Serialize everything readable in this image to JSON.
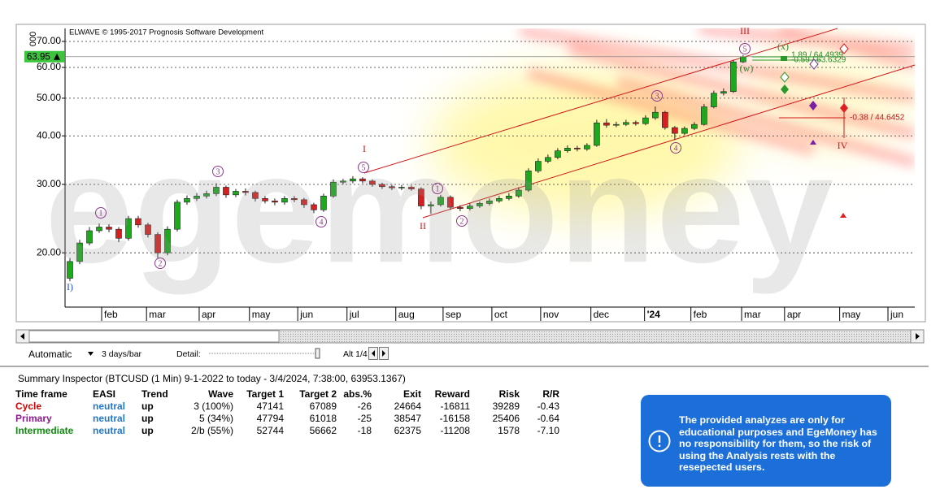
{
  "chart_data": {
    "type": "candlestick",
    "title": "ELWAVE © 1995-2017 Prognosis Software Development",
    "watermark": "egemoney",
    "clipped_tick_label": "000",
    "last_price": 63.95,
    "colors": {
      "up": "#1ea81e",
      "down": "#d42020"
    },
    "x": [
      1,
      3,
      5,
      7,
      9,
      11,
      13,
      15,
      17,
      19,
      21,
      23,
      25,
      27,
      29,
      31,
      33,
      35,
      37,
      39,
      41,
      43,
      45,
      47,
      49,
      51,
      53,
      55,
      57,
      59,
      61,
      63,
      65,
      67,
      69,
      71,
      73,
      75,
      77,
      79,
      81,
      83,
      85,
      87,
      89,
      91,
      93,
      95,
      97,
      99,
      101,
      103,
      105,
      107,
      109,
      111,
      113,
      115,
      117,
      119,
      121,
      123,
      125,
      127,
      129,
      131,
      133,
      135,
      137,
      139
    ],
    "open": [
      17.2,
      19.0,
      21.2,
      22.8,
      23.3,
      23.0,
      21.8,
      24.5,
      23.6,
      22.3,
      20.0,
      23.0,
      27.0,
      27.6,
      28.0,
      28.4,
      29.5,
      28.2,
      28.8,
      28.6,
      27.6,
      27.2,
      27.0,
      27.6,
      27.4,
      26.6,
      25.8,
      28.0,
      30.4,
      30.6,
      31.0,
      30.6,
      30.0,
      29.6,
      29.4,
      29.5,
      29.2,
      26.4,
      26.6,
      27.8,
      26.2,
      26.0,
      26.4,
      26.8,
      27.2,
      27.6,
      28.0,
      29.0,
      32.5,
      34.4,
      35.2,
      36.6,
      37.2,
      37.0,
      37.8,
      43.2,
      42.6,
      42.8,
      43.3,
      43.0,
      44.5,
      46.0,
      42.0,
      40.6,
      41.8,
      42.8,
      47.5,
      51.5,
      52.0,
      62.0
    ],
    "high": [
      19.4,
      21.6,
      23.3,
      23.8,
      23.7,
      23.3,
      24.9,
      24.9,
      23.9,
      22.6,
      23.4,
      27.4,
      28.1,
      28.5,
      28.9,
      30.2,
      29.8,
      29.2,
      29.3,
      28.9,
      28.0,
      27.6,
      28.0,
      28.0,
      27.7,
      26.9,
      28.4,
      30.9,
      31.0,
      31.5,
      31.3,
      30.9,
      30.3,
      29.9,
      29.9,
      29.8,
      29.5,
      27.1,
      28.2,
      28.1,
      26.5,
      26.8,
      27.1,
      27.6,
      28.0,
      28.5,
      29.5,
      33.0,
      35.0,
      35.8,
      37.2,
      37.8,
      37.7,
      38.3,
      44.0,
      44.2,
      43.5,
      44.0,
      43.8,
      45.2,
      47.6,
      46.4,
      42.4,
      42.3,
      43.4,
      48.3,
      52.3,
      53.0,
      62.8,
      64.5
    ],
    "low": [
      16.9,
      18.7,
      20.9,
      22.5,
      22.6,
      21.3,
      21.5,
      23.2,
      21.9,
      19.4,
      19.7,
      22.7,
      26.6,
      27.2,
      27.6,
      28.0,
      27.7,
      27.8,
      28.1,
      27.1,
      26.8,
      26.5,
      26.6,
      27.0,
      26.1,
      25.3,
      25.5,
      27.7,
      30.0,
      30.2,
      30.2,
      29.6,
      29.2,
      29.0,
      29.0,
      28.9,
      25.9,
      25.2,
      26.3,
      25.8,
      25.6,
      25.7,
      26.1,
      26.5,
      26.9,
      27.3,
      27.7,
      28.7,
      32.1,
      34.0,
      34.8,
      36.2,
      36.5,
      36.6,
      37.5,
      42.0,
      42.1,
      42.4,
      42.5,
      42.6,
      44.0,
      41.5,
      39.0,
      40.2,
      41.4,
      42.5,
      47.1,
      50.8,
      51.6,
      61.6
    ],
    "close": [
      19.0,
      21.2,
      22.8,
      23.3,
      23.0,
      21.8,
      24.5,
      23.6,
      22.3,
      20.0,
      23.0,
      27.0,
      27.6,
      28.0,
      28.4,
      29.5,
      28.2,
      28.8,
      28.6,
      27.6,
      27.2,
      27.0,
      27.6,
      27.4,
      26.6,
      25.8,
      28.0,
      30.4,
      30.6,
      31.0,
      30.6,
      30.0,
      29.6,
      29.4,
      29.5,
      29.2,
      26.4,
      26.6,
      27.8,
      26.2,
      26.0,
      26.4,
      26.8,
      27.2,
      27.6,
      28.0,
      29.0,
      32.5,
      34.4,
      35.2,
      36.6,
      37.2,
      37.0,
      37.8,
      43.2,
      42.6,
      42.8,
      43.3,
      43.0,
      44.5,
      46.0,
      42.0,
      40.6,
      41.8,
      42.8,
      47.5,
      51.5,
      52.0,
      62.0,
      63.95
    ],
    "xlim": [
      0,
      174.2
    ],
    "xticks": [
      {
        "value": 7.5,
        "label": "feb"
      },
      {
        "value": 16.7,
        "label": "mar"
      },
      {
        "value": 27.5,
        "label": "apr"
      },
      {
        "value": 37.8,
        "label": "may"
      },
      {
        "value": 47.7,
        "label": "jun"
      },
      {
        "value": 57.8,
        "label": "jul"
      },
      {
        "value": 67.8,
        "label": "aug"
      },
      {
        "value": 77.5,
        "label": "sep"
      },
      {
        "value": 87.5,
        "label": "oct"
      },
      {
        "value": 97.5,
        "label": "nov"
      },
      {
        "value": 107.8,
        "label": "dec"
      },
      {
        "value": 118.8,
        "label": "'24"
      },
      {
        "value": 128.3,
        "label": "feb"
      },
      {
        "value": 138.7,
        "label": "mar"
      },
      {
        "value": 147.5,
        "label": "apr"
      },
      {
        "value": 158.8,
        "label": "may"
      },
      {
        "value": 168.7,
        "label": "jun"
      }
    ],
    "ylim": [
      14.5,
      75.6
    ],
    "yticks": [
      {
        "value": 20,
        "label": "20.00"
      },
      {
        "value": 30,
        "label": "30.00"
      },
      {
        "value": 40,
        "label": "40.00"
      },
      {
        "value": 50,
        "label": "50.00"
      },
      {
        "value": 60,
        "label": "60.00"
      },
      {
        "value": 70,
        "label": "70.00"
      }
    ],
    "log_scale": true,
    "grid": true,
    "wave_labels": [
      "I)",
      "1",
      "2",
      "3",
      "4",
      "5",
      "I",
      "II",
      "1",
      "2",
      "3",
      "4",
      "5",
      "III",
      "IV",
      "(w)",
      "(x)"
    ],
    "annotations": [
      "1.89 / 64.4939",
      "-0.59 / 63.6329",
      "-0.38 / 44.6452"
    ]
  },
  "toolbar": {
    "mode": "Automatic",
    "interval": "3 days/bar",
    "detail_label": "Detail:",
    "alt": "Alt 1/4"
  },
  "summary": {
    "title": "Summary Inspector (BTCUSD (1 Min)  9-1-2022 to today - 3/4/2024, 7:38:00, 63953.1367)",
    "columns": [
      "Time frame",
      "EASI",
      "Trend",
      "Wave",
      "Target 1",
      "Target 2",
      "abs.%",
      "Exit",
      "Reward",
      "Risk",
      "R/R"
    ],
    "rows": [
      [
        "Cycle",
        "neutral",
        "up",
        "3 (100%)",
        47141,
        67089,
        -26,
        24664,
        -16811,
        39289,
        -0.43
      ],
      [
        "Primary",
        "neutral",
        "up",
        "5 (34%)",
        47794,
        61018,
        -25,
        38547,
        -16158,
        25406,
        -0.64
      ],
      [
        "Intermediate",
        "neutral",
        "up",
        "2/b (55%)",
        52744,
        56662,
        -18,
        62375,
        -11208,
        1578,
        "-7.10"
      ]
    ]
  },
  "notice": "The provided analyzes are only for educational purposes  and EgeMoney has no responsibility for them, so the risk of using the Analysis rests with the resepected users."
}
